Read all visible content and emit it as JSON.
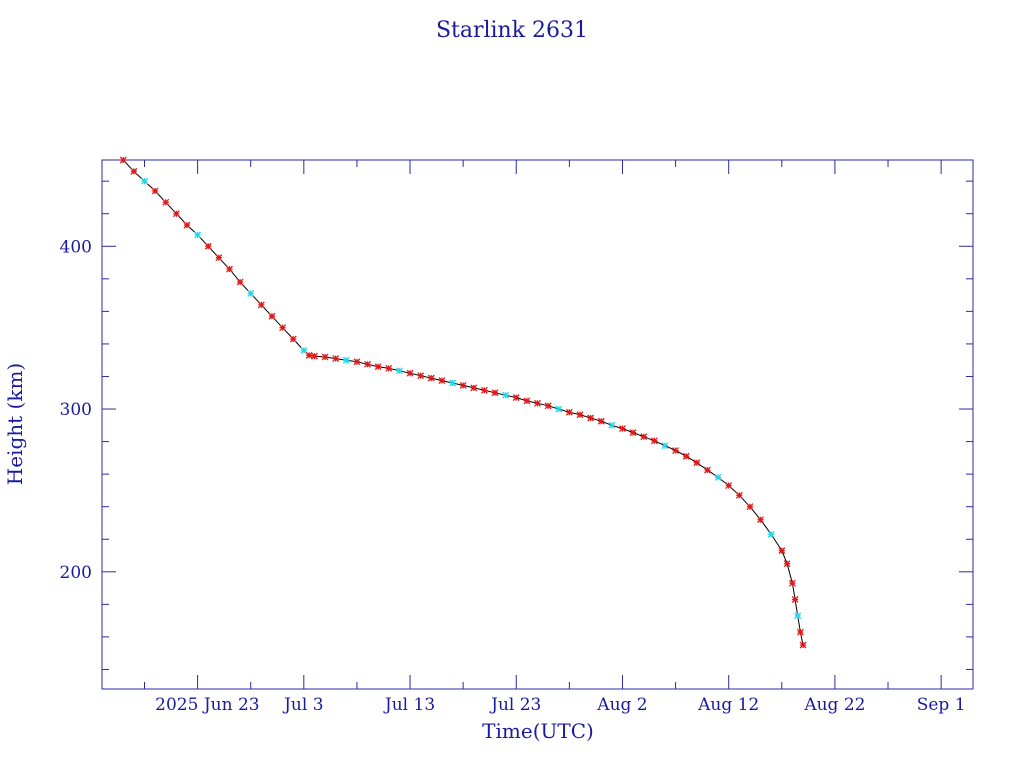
{
  "colors": {
    "axis": "#2a2aa0",
    "text": "#1a1aa0",
    "curve": "#000000",
    "marker_primary": "#e01818",
    "marker_secondary": "#22d8e8"
  },
  "chart_data": {
    "type": "line",
    "title": "Starlink 2631",
    "xlabel": "Time(UTC)",
    "ylabel": "Height (km)",
    "x_is_date": true,
    "xlim": [
      "2025-06-14",
      "2025-09-04"
    ],
    "ylim": [
      128,
      453
    ],
    "grid": false,
    "x_tick_labels": [
      {
        "date": "2025-06-23",
        "label": "2025 Jun 23"
      },
      {
        "date": "2025-07-03",
        "label": "Jul  3"
      },
      {
        "date": "2025-07-13",
        "label": "Jul 13"
      },
      {
        "date": "2025-07-23",
        "label": "Jul 23"
      },
      {
        "date": "2025-08-02",
        "label": "Aug  2"
      },
      {
        "date": "2025-08-12",
        "label": "Aug 12"
      },
      {
        "date": "2025-08-22",
        "label": "Aug 22"
      },
      {
        "date": "2025-09-01",
        "label": "Sep  1"
      }
    ],
    "x_minor_tick_dates": [
      "2025-06-18",
      "2025-06-28",
      "2025-07-08",
      "2025-07-18",
      "2025-07-28",
      "2025-08-07",
      "2025-08-17",
      "2025-08-27"
    ],
    "y_major_ticks": [
      200,
      300,
      400
    ],
    "y_minor_ticks": [
      140,
      160,
      180,
      220,
      240,
      260,
      280,
      320,
      340,
      360,
      380,
      420,
      440
    ],
    "series": [
      {
        "points": [
          [
            "2025-06-16",
            453
          ],
          [
            "2025-06-17",
            446
          ],
          [
            "2025-06-18",
            440
          ],
          [
            "2025-06-19",
            434
          ],
          [
            "2025-06-20",
            427
          ],
          [
            "2025-06-21",
            420
          ],
          [
            "2025-06-22",
            413
          ],
          [
            "2025-06-23",
            407
          ],
          [
            "2025-06-24",
            400
          ],
          [
            "2025-06-25",
            393
          ],
          [
            "2025-06-26",
            386
          ],
          [
            "2025-06-27",
            378
          ],
          [
            "2025-06-28",
            371
          ],
          [
            "2025-06-29",
            364
          ],
          [
            "2025-06-30",
            357
          ],
          [
            "2025-07-01",
            350
          ],
          [
            "2025-07-02",
            343
          ],
          [
            "2025-07-03",
            336
          ],
          [
            "2025-07-03T12",
            333
          ],
          [
            "2025-07-04",
            332.5
          ],
          [
            "2025-07-05",
            332
          ],
          [
            "2025-07-06",
            331
          ],
          [
            "2025-07-07",
            330
          ],
          [
            "2025-07-08",
            329
          ],
          [
            "2025-07-09",
            327.5
          ],
          [
            "2025-07-10",
            326
          ],
          [
            "2025-07-11",
            325
          ],
          [
            "2025-07-12",
            323.5
          ],
          [
            "2025-07-13",
            322
          ],
          [
            "2025-07-14",
            320.5
          ],
          [
            "2025-07-15",
            319
          ],
          [
            "2025-07-16",
            317.5
          ],
          [
            "2025-07-17",
            316
          ],
          [
            "2025-07-18",
            314.5
          ],
          [
            "2025-07-19",
            313
          ],
          [
            "2025-07-20",
            311.5
          ],
          [
            "2025-07-21",
            310
          ],
          [
            "2025-07-22",
            308.5
          ],
          [
            "2025-07-23",
            307
          ],
          [
            "2025-07-24",
            305
          ],
          [
            "2025-07-25",
            303.5
          ],
          [
            "2025-07-26",
            302
          ],
          [
            "2025-07-27",
            300
          ],
          [
            "2025-07-28",
            298
          ],
          [
            "2025-07-29",
            296.5
          ],
          [
            "2025-07-30",
            294.5
          ],
          [
            "2025-07-31",
            292.5
          ],
          [
            "2025-08-01",
            290
          ],
          [
            "2025-08-02",
            288
          ],
          [
            "2025-08-03",
            285.5
          ],
          [
            "2025-08-04",
            283
          ],
          [
            "2025-08-05",
            280.5
          ],
          [
            "2025-08-06",
            277.5
          ],
          [
            "2025-08-07",
            274.5
          ],
          [
            "2025-08-08",
            271
          ],
          [
            "2025-08-09",
            267
          ],
          [
            "2025-08-10",
            262.5
          ],
          [
            "2025-08-11",
            258
          ],
          [
            "2025-08-12",
            253
          ],
          [
            "2025-08-13",
            247
          ],
          [
            "2025-08-14",
            240
          ],
          [
            "2025-08-15",
            232
          ],
          [
            "2025-08-16",
            223
          ],
          [
            "2025-08-17",
            213
          ],
          [
            "2025-08-17T12",
            205
          ],
          [
            "2025-08-18",
            193
          ],
          [
            "2025-08-18T06",
            183
          ],
          [
            "2025-08-18T12",
            173
          ],
          [
            "2025-08-18T18",
            163
          ],
          [
            "2025-08-19",
            155
          ]
        ]
      }
    ]
  }
}
